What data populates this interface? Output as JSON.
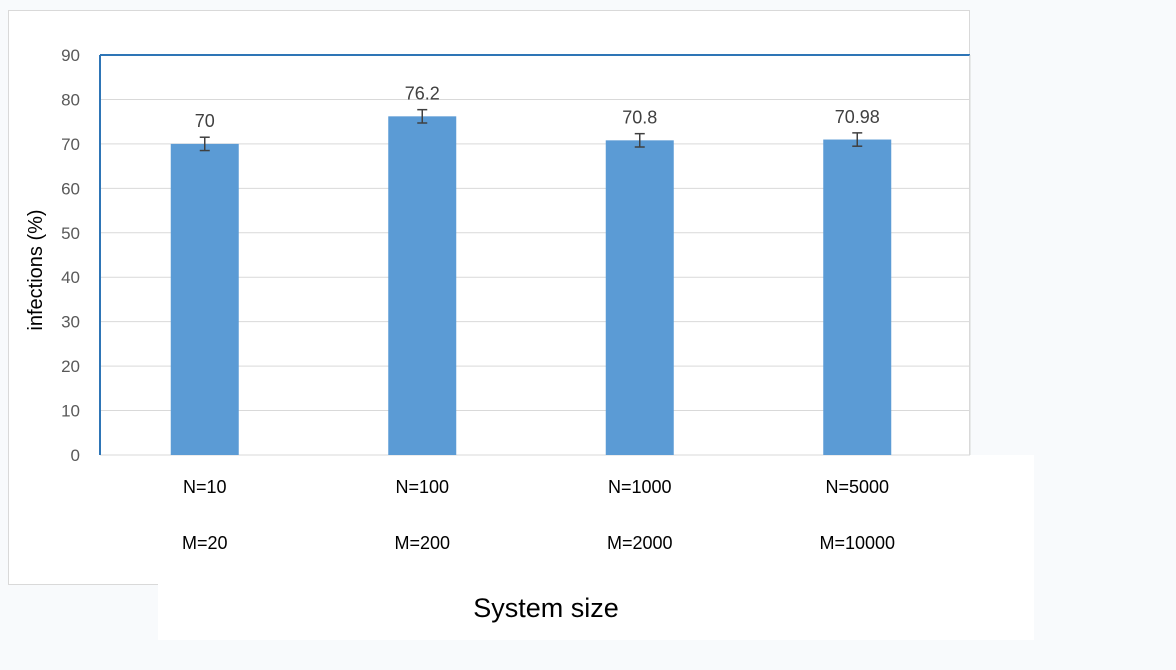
{
  "chart_data": {
    "type": "bar",
    "categories": [
      [
        "N=10",
        "M=20"
      ],
      [
        "N=100",
        "M=200"
      ],
      [
        "N=1000",
        "M=2000"
      ],
      [
        "N=5000",
        "M=10000"
      ]
    ],
    "values": [
      70,
      76.2,
      70.8,
      70.98
    ],
    "data_labels": [
      "70",
      "76.2",
      "70.8",
      "70.98"
    ],
    "error": [
      1.5,
      1.5,
      1.5,
      1.5
    ],
    "ylabel": "infections (%)",
    "xlabel": "System size",
    "ylim": [
      0,
      90
    ],
    "yticks": [
      "0",
      "10",
      "20",
      "30",
      "40",
      "50",
      "60",
      "70",
      "80",
      "90"
    ],
    "grid": true,
    "legend": "none",
    "bar_color": "#5b9bd5",
    "grid_color": "#d9d9d9",
    "axis_color": "#2e75b6"
  }
}
